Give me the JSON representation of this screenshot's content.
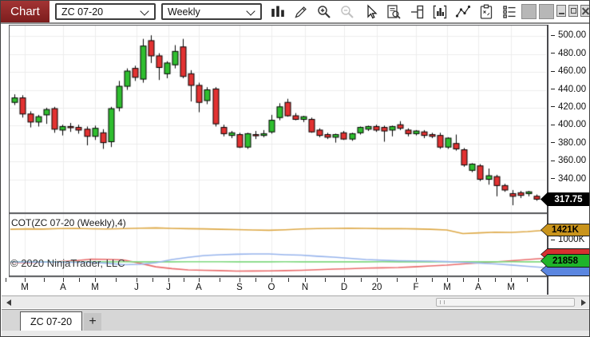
{
  "window": {
    "title_tab": "Chart"
  },
  "toolbar": {
    "instrument_dropdown": "ZC 07-20",
    "interval_dropdown": "Weekly",
    "icons": [
      "chart-style-icon",
      "pencil-icon",
      "zoom-in-icon",
      "zoom-out-icon",
      "cursor-icon",
      "data-box-icon",
      "chart-trader-icon",
      "indicators-icon",
      "line-tools-icon",
      "strategies-icon",
      "objects-icon"
    ],
    "window_controls": [
      "panel-icon",
      "panel-icon",
      "minimize-icon",
      "restore-icon",
      "close-icon"
    ]
  },
  "tabbar": {
    "active_tab": "ZC 07-20",
    "add_tab": "+"
  },
  "colors": {
    "up": "#2fbe2f",
    "down": "#e23232",
    "grid": "#ececec",
    "border": "#55565a",
    "marker_text": "#ffffff"
  },
  "chart_data": {
    "type": "candlestick",
    "title": "ZC 07-20 Weekly",
    "price_axis": {
      "ticks": [
        500,
        480,
        460,
        440,
        420,
        400,
        380,
        360,
        340
      ],
      "last_price": 317.75,
      "last_price_label": "317.75"
    },
    "x_axis": {
      "labels": [
        "M",
        "A",
        "M",
        "J",
        "J",
        "A",
        "S",
        "O",
        "N",
        "D",
        "20",
        "F",
        "M",
        "A",
        "M"
      ],
      "positions": [
        30,
        78,
        118,
        170,
        210,
        248,
        299,
        339,
        381,
        430,
        471,
        520,
        559,
        598,
        639
      ]
    },
    "bars": [
      [
        426,
        435,
        423,
        431
      ],
      [
        431,
        434,
        409,
        413
      ],
      [
        413,
        416,
        398,
        404
      ],
      [
        404,
        412,
        399,
        410
      ],
      [
        412,
        420,
        402,
        418
      ],
      [
        419,
        421,
        392,
        396
      ],
      [
        395,
        401,
        389,
        399
      ],
      [
        399,
        403,
        393,
        398
      ],
      [
        398,
        401,
        391,
        395
      ],
      [
        396,
        399,
        378,
        388
      ],
      [
        388,
        400,
        384,
        397
      ],
      [
        392,
        396,
        374,
        381
      ],
      [
        382,
        421,
        376,
        419
      ],
      [
        420,
        450,
        416,
        444
      ],
      [
        444,
        464,
        440,
        461
      ],
      [
        464,
        467,
        450,
        454
      ],
      [
        452,
        497,
        448,
        489
      ],
      [
        495,
        501,
        470,
        478
      ],
      [
        478,
        481,
        451,
        465
      ],
      [
        458,
        472,
        453,
        470
      ],
      [
        468,
        490,
        464,
        483
      ],
      [
        488,
        497,
        453,
        455
      ],
      [
        458,
        462,
        427,
        445
      ],
      [
        445,
        448,
        415,
        426
      ],
      [
        428,
        443,
        424,
        440
      ],
      [
        441,
        443,
        399,
        402
      ],
      [
        398,
        401,
        388,
        391
      ],
      [
        389,
        394,
        386,
        392
      ],
      [
        390,
        392,
        375,
        376
      ],
      [
        376,
        392,
        374,
        391
      ],
      [
        390,
        394,
        385,
        389
      ],
      [
        389,
        395,
        387,
        391
      ],
      [
        393,
        412,
        391,
        406
      ],
      [
        409,
        425,
        406,
        421
      ],
      [
        426,
        430,
        410,
        411
      ],
      [
        411,
        414,
        406,
        407
      ],
      [
        407,
        411,
        404,
        410
      ],
      [
        407,
        409,
        392,
        393
      ],
      [
        395,
        397,
        387,
        389
      ],
      [
        390,
        392,
        385,
        387
      ],
      [
        387,
        391,
        381,
        390
      ],
      [
        392,
        394,
        384,
        385
      ],
      [
        385,
        392,
        383,
        391
      ],
      [
        392,
        399,
        390,
        398
      ],
      [
        396,
        400,
        394,
        399
      ],
      [
        399,
        401,
        393,
        395
      ],
      [
        398,
        400,
        382,
        394
      ],
      [
        395,
        400,
        388,
        399
      ],
      [
        401,
        405,
        395,
        397
      ],
      [
        395,
        397,
        388,
        391
      ],
      [
        391,
        395,
        389,
        394
      ],
      [
        393,
        395,
        386,
        389
      ],
      [
        390,
        392,
        386,
        388
      ],
      [
        389,
        392,
        374,
        376
      ],
      [
        376,
        387,
        374,
        386
      ],
      [
        380,
        390,
        372,
        374
      ],
      [
        373,
        375,
        354,
        356
      ],
      [
        350,
        358,
        348,
        357
      ],
      [
        355,
        357,
        338,
        340
      ],
      [
        340,
        352,
        334,
        344
      ],
      [
        343,
        345,
        321,
        333
      ],
      [
        333,
        335,
        326,
        328
      ],
      [
        324,
        328,
        311,
        321
      ],
      [
        325,
        327,
        319,
        322
      ],
      [
        324,
        327,
        321,
        326
      ],
      [
        321,
        323,
        316,
        317.75
      ]
    ],
    "lower_panel": {
      "label": "COT(ZC 07-20 (Weekly),4)",
      "axis_tick_label": "1000K",
      "watermark": "© 2020 NinjaTrader, LLC",
      "series": [
        {
          "name": "gold-line",
          "color": "#dda845",
          "marker_label": "1421K",
          "marker_color": "#c9941c",
          "values": [
            1470,
            1488,
            1477,
            1499,
            1510,
            1492,
            1481,
            1499,
            1521,
            1532,
            1510,
            1496,
            1488,
            1470,
            1455,
            1440,
            1425,
            1447,
            1481,
            1503,
            1510,
            1521,
            1510,
            1496,
            1503,
            1488,
            1470,
            1440,
            1279,
            1310,
            1340,
            1332,
            1368,
            1421
          ]
        },
        {
          "name": "red-line",
          "color": "#e96a6a",
          "marker_label": "",
          "marker_color": "#d73030",
          "values": [
            0,
            -18,
            10,
            36,
            71,
            142,
            135,
            107,
            -40,
            -200,
            -280,
            -337,
            -355,
            -370,
            -391,
            -385,
            -380,
            -370,
            -355,
            -330,
            -302,
            -285,
            -260,
            -245,
            -231,
            -200,
            -160,
            -124,
            -70,
            -25,
            18,
            70,
            124,
            178
          ]
        },
        {
          "name": "green-line",
          "color": "#7fd87f",
          "marker_label": "21858",
          "marker_color": "#1fb32a",
          "values": [
            22,
            23,
            22,
            24,
            23,
            22,
            23,
            24,
            23,
            22,
            23,
            24,
            25,
            24,
            23,
            22,
            23,
            24,
            23,
            22,
            23,
            22,
            23,
            24,
            23,
            22,
            23,
            24,
            23,
            22,
            23,
            24,
            23,
            22
          ]
        },
        {
          "name": "blue-line",
          "color": "#97b4ec",
          "marker_label": "",
          "marker_color": "#5b86e0",
          "values": [
            18,
            15,
            12,
            10,
            5,
            0,
            -40,
            -107,
            -90,
            -20,
            124,
            220,
            300,
            340,
            360,
            373,
            373,
            340,
            320,
            270,
            230,
            178,
            124,
            95,
            71,
            60,
            53,
            30,
            0,
            -35,
            -71,
            -120,
            -178,
            -231
          ]
        }
      ]
    }
  }
}
